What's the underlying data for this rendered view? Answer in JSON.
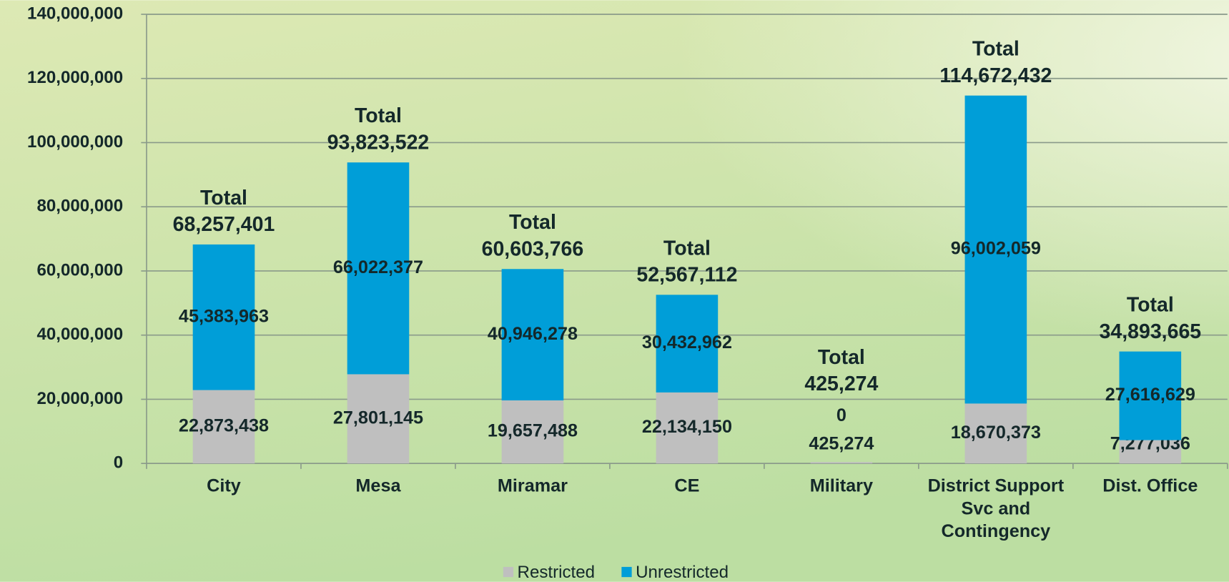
{
  "chart_data": {
    "type": "stacked_bar",
    "categories": [
      "City",
      "Mesa",
      "Miramar",
      "CE",
      "Military",
      "District Support Svc and Contingency",
      "Dist. Office"
    ],
    "series": [
      {
        "name": "Restricted",
        "color": "#bfbfbf",
        "values": [
          22873438,
          27801145,
          19657488,
          22134150,
          425274,
          18670373,
          7277036
        ],
        "value_labels": [
          "22,873,438",
          "27,801,145",
          "19,657,488",
          "22,134,150",
          "425,274",
          "18,670,373",
          "7,277,036"
        ]
      },
      {
        "name": "Unrestricted",
        "color": "#009ed8",
        "values": [
          45383963,
          66022377,
          40946278,
          30432962,
          0,
          96002059,
          27616629
        ],
        "value_labels": [
          "45,383,963",
          "66,022,377",
          "40,946,278",
          "30,432,962",
          "0",
          "96,002,059",
          "27,616,629"
        ]
      }
    ],
    "totals": {
      "label": "Total",
      "values": [
        68257401,
        93823522,
        60603766,
        52567112,
        425274,
        114672432,
        34893665
      ],
      "value_labels": [
        "68,257,401",
        "93,823,522",
        "60,603,766",
        "52,567,112",
        "425,274",
        "114,672,432",
        "34,893,665"
      ]
    },
    "ylim": [
      0,
      140000000
    ],
    "yticks": [
      0,
      {
        "value": 20000000,
        "label": "20,000,000"
      },
      {
        "value": 40000000,
        "label": "40,000,000"
      },
      {
        "value": 60000000,
        "label": "60,000,000"
      },
      {
        "value": 80000000,
        "label": "80,000,000"
      },
      {
        "value": 100000000,
        "label": "100,000,000"
      },
      {
        "value": 120000000,
        "label": "120,000,000"
      },
      {
        "value": 140000000,
        "label": "140,000,000"
      }
    ],
    "grid": true,
    "legend": "bottom"
  }
}
